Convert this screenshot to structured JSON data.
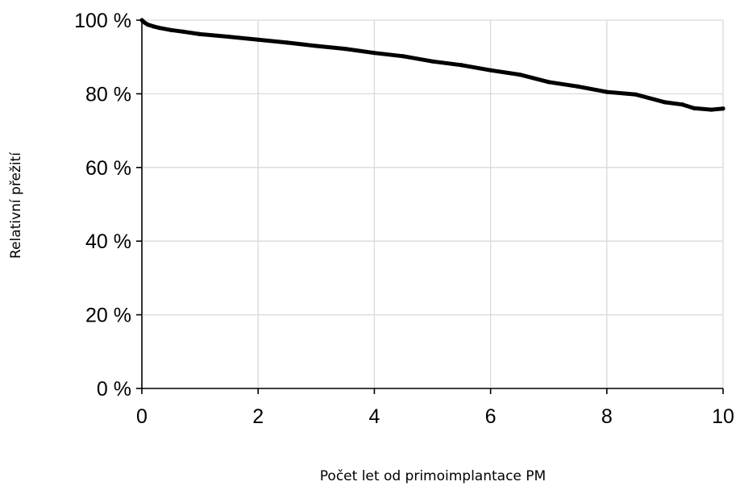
{
  "chart_data": {
    "type": "line",
    "xlabel": "Počet let od primoimplantace PM",
    "ylabel": "Relativní přežití",
    "xlim": [
      0,
      10
    ],
    "ylim": [
      0,
      100
    ],
    "x_ticks": [
      0,
      2,
      4,
      6,
      8,
      10
    ],
    "y_ticks": [
      0,
      20,
      40,
      60,
      80,
      100
    ],
    "x_tick_labels": [
      "0",
      "2",
      "4",
      "6",
      "8",
      "10"
    ],
    "y_tick_labels": [
      "0 %",
      "20 %",
      "40 %",
      "60 %",
      "80 %",
      "100 %"
    ],
    "grid": true,
    "series": [
      {
        "color": "#000000",
        "x": [
          0,
          0.05,
          0.1,
          0.2,
          0.3,
          0.5,
          0.7,
          1.0,
          1.5,
          2.0,
          2.5,
          3.0,
          3.5,
          4.0,
          4.5,
          5.0,
          5.5,
          6.0,
          6.5,
          7.0,
          7.5,
          8.0,
          8.5,
          9.0,
          9.3,
          9.5,
          9.8,
          10.0
        ],
        "values": [
          100,
          99.3,
          98.8,
          98.3,
          97.9,
          97.3,
          96.9,
          96.2,
          95.5,
          94.7,
          93.9,
          93.0,
          92.2,
          91.1,
          90.2,
          88.8,
          87.8,
          86.4,
          85.2,
          83.2,
          82.0,
          80.5,
          79.8,
          77.7,
          77.1,
          76.1,
          75.7,
          76.0
        ]
      }
    ]
  }
}
